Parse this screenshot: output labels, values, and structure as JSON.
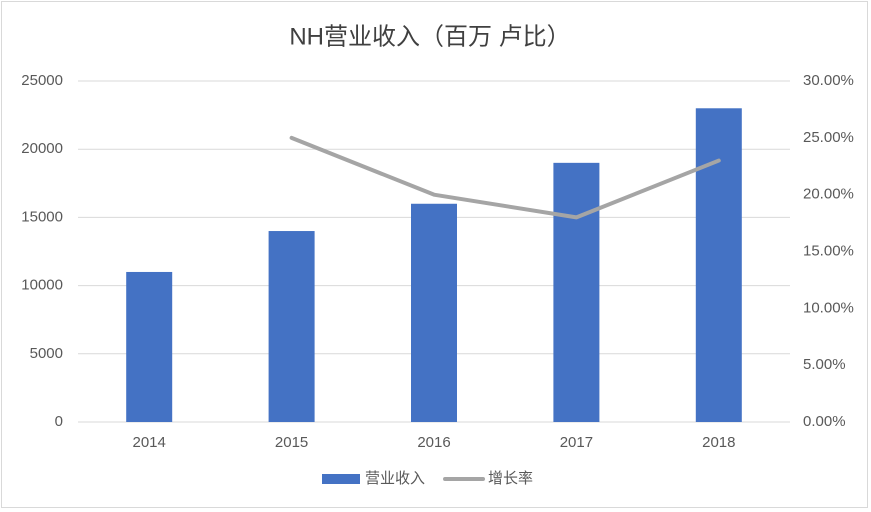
{
  "chart_data": {
    "type": "bar_line",
    "title": "NH营业收入（百万 卢比）",
    "categories": [
      "2014",
      "2015",
      "2016",
      "2017",
      "2018"
    ],
    "series": [
      {
        "name": "营业收入",
        "type": "bar",
        "color": "#4472c4",
        "values": [
          11000,
          14000,
          16000,
          19000,
          23000
        ]
      },
      {
        "name": "增长率",
        "type": "line",
        "color": "#a5a5a5",
        "axis": "y2",
        "values": [
          null,
          25,
          20,
          18,
          23
        ]
      }
    ],
    "ylim": [
      0,
      25000
    ],
    "yticks": [
      0,
      5000,
      10000,
      15000,
      20000,
      25000
    ],
    "y2lim": [
      0,
      30
    ],
    "y2ticks": [
      {
        "value": 0,
        "label": "0.00%"
      },
      {
        "value": 5,
        "label": "5.00%"
      },
      {
        "value": 10,
        "label": "10.00%"
      },
      {
        "value": 15,
        "label": "15.00%"
      },
      {
        "value": 20,
        "label": "20.00%"
      },
      {
        "value": 25,
        "label": "25.00%"
      },
      {
        "value": 30,
        "label": "30.00%"
      }
    ],
    "grid": true,
    "legend": "bottom"
  }
}
